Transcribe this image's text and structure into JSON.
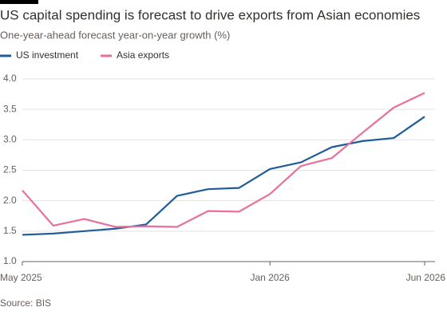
{
  "chart_data": {
    "type": "line",
    "title": "US capital spending is forecast to drive exports from Asian economies",
    "subtitle": "One-year-ahead forecast year-on-year growth (%)",
    "source": "Source: BIS",
    "categories": [
      "May 2025",
      null,
      null,
      null,
      null,
      null,
      null,
      null,
      "Jan 2026",
      null,
      null,
      null,
      null,
      "Jun 2026"
    ],
    "series": [
      {
        "name": "US investment",
        "color": "#1f5c99",
        "values": [
          1.44,
          1.46,
          1.5,
          1.54,
          1.61,
          2.08,
          2.19,
          2.21,
          2.52,
          2.63,
          2.88,
          2.98,
          3.03,
          3.38
        ]
      },
      {
        "name": "Asia exports",
        "color": "#e8709c",
        "values": [
          2.17,
          1.59,
          1.7,
          1.57,
          1.58,
          1.57,
          1.83,
          1.82,
          2.11,
          2.57,
          2.7,
          3.12,
          3.53,
          3.77
        ]
      }
    ],
    "ylim": [
      1,
      4
    ],
    "yticks": [
      {
        "value": 1,
        "label": "1.0"
      },
      {
        "value": 1.5,
        "label": "1.5"
      },
      {
        "value": 2,
        "label": "2.0"
      },
      {
        "value": 2.5,
        "label": "2.5"
      },
      {
        "value": 3,
        "label": "3.0"
      },
      {
        "value": 3.5,
        "label": "3.5"
      },
      {
        "value": 4,
        "label": "4.0"
      }
    ],
    "grid": true
  }
}
